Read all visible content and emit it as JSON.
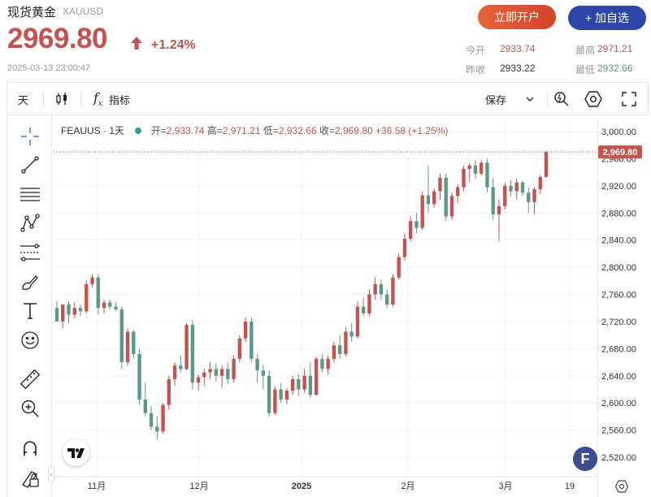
{
  "header": {
    "title": "现货黄金",
    "symbol": "XAUUSD",
    "price": "2969.80",
    "change_pct": "+1.24%",
    "timestamp": "2025-03-13 23:00:47",
    "open_account_label": "立即开户",
    "add_watchlist_label": "+ 加自选",
    "up_color": "#c8514d",
    "down_color": "#5a9a85"
  },
  "quotes": {
    "open_label": "今开",
    "open_value": "2933.74",
    "high_label": "最高",
    "high_value": "2971.21",
    "prev_label": "昨收",
    "prev_value": "2933.22",
    "low_label": "最低",
    "low_value": "2932.66"
  },
  "toolbar": {
    "interval": "天",
    "indicators_label": "指标",
    "save_label": "保存"
  },
  "legend": {
    "name": "FEAUUS · 1天",
    "open_label": "开=",
    "open": "2,933.74",
    "high_label": "高=",
    "high": "2,971.21",
    "low_label": "低=",
    "low": "2,932.66",
    "close_label": "收=",
    "close": "2,969.80",
    "change": "+36.58 (+1.25%)"
  },
  "chart_data": {
    "type": "candlestick",
    "y_ticks": [
      "3,000.00",
      "2,960.00",
      "2,920.00",
      "2,880.00",
      "2,840.00",
      "2,800.00",
      "2,760.00",
      "2,720.00",
      "2,680.00",
      "2,640.00",
      "2,600.00",
      "2,560.00",
      "2,520.00"
    ],
    "x_ticks": [
      "11月",
      "12月",
      "2025",
      "2月",
      "3月",
      "19"
    ],
    "ylim": [
      2490,
      3020
    ],
    "last_price_label": "2,969.80",
    "candles": [
      [
        2740,
        2750,
        2720,
        2720
      ],
      [
        2720,
        2745,
        2710,
        2745
      ],
      [
        2745,
        2750,
        2718,
        2730
      ],
      [
        2730,
        2748,
        2725,
        2740
      ],
      [
        2740,
        2745,
        2728,
        2735
      ],
      [
        2735,
        2780,
        2732,
        2775
      ],
      [
        2775,
        2790,
        2770,
        2785
      ],
      [
        2785,
        2790,
        2730,
        2740
      ],
      [
        2740,
        2752,
        2732,
        2748
      ],
      [
        2748,
        2752,
        2738,
        2742
      ],
      [
        2742,
        2748,
        2736,
        2738
      ],
      [
        2738,
        2742,
        2650,
        2660
      ],
      [
        2660,
        2710,
        2655,
        2705
      ],
      [
        2705,
        2708,
        2665,
        2672
      ],
      [
        2672,
        2680,
        2598,
        2605
      ],
      [
        2605,
        2630,
        2580,
        2585
      ],
      [
        2585,
        2595,
        2560,
        2565
      ],
      [
        2565,
        2580,
        2545,
        2558
      ],
      [
        2558,
        2600,
        2555,
        2597
      ],
      [
        2597,
        2640,
        2590,
        2635
      ],
      [
        2635,
        2660,
        2625,
        2655
      ],
      [
        2655,
        2670,
        2645,
        2650
      ],
      [
        2650,
        2718,
        2648,
        2715
      ],
      [
        2715,
        2722,
        2620,
        2630
      ],
      [
        2630,
        2642,
        2618,
        2638
      ],
      [
        2638,
        2650,
        2625,
        2645
      ],
      [
        2645,
        2660,
        2635,
        2650
      ],
      [
        2650,
        2658,
        2632,
        2640
      ],
      [
        2640,
        2655,
        2622,
        2650
      ],
      [
        2650,
        2660,
        2628,
        2635
      ],
      [
        2635,
        2670,
        2630,
        2665
      ],
      [
        2665,
        2700,
        2660,
        2695
      ],
      [
        2695,
        2726,
        2690,
        2720
      ],
      [
        2720,
        2726,
        2660,
        2665
      ],
      [
        2665,
        2672,
        2630,
        2648
      ],
      [
        2648,
        2656,
        2620,
        2640
      ],
      [
        2640,
        2648,
        2580,
        2585
      ],
      [
        2585,
        2625,
        2582,
        2620
      ],
      [
        2620,
        2630,
        2600,
        2605
      ],
      [
        2605,
        2622,
        2598,
        2618
      ],
      [
        2618,
        2640,
        2612,
        2635
      ],
      [
        2635,
        2642,
        2610,
        2620
      ],
      [
        2620,
        2650,
        2615,
        2640
      ],
      [
        2640,
        2660,
        2608,
        2612
      ],
      [
        2612,
        2668,
        2610,
        2665
      ],
      [
        2665,
        2672,
        2645,
        2650
      ],
      [
        2650,
        2670,
        2642,
        2665
      ],
      [
        2665,
        2690,
        2660,
        2685
      ],
      [
        2685,
        2700,
        2665,
        2672
      ],
      [
        2672,
        2712,
        2668,
        2705
      ],
      [
        2705,
        2718,
        2690,
        2698
      ],
      [
        2698,
        2750,
        2695,
        2742
      ],
      [
        2742,
        2755,
        2728,
        2732
      ],
      [
        2732,
        2768,
        2728,
        2760
      ],
      [
        2760,
        2785,
        2752,
        2775
      ],
      [
        2775,
        2782,
        2752,
        2760
      ],
      [
        2760,
        2768,
        2740,
        2745
      ],
      [
        2745,
        2790,
        2742,
        2785
      ],
      [
        2785,
        2820,
        2782,
        2815
      ],
      [
        2815,
        2850,
        2810,
        2842
      ],
      [
        2842,
        2875,
        2838,
        2868
      ],
      [
        2868,
        2880,
        2850,
        2858
      ],
      [
        2858,
        2912,
        2855,
        2906
      ],
      [
        2906,
        2950,
        2880,
        2893
      ],
      [
        2893,
        2916,
        2888,
        2912
      ],
      [
        2912,
        2938,
        2900,
        2932
      ],
      [
        2932,
        2938,
        2868,
        2875
      ],
      [
        2875,
        2910,
        2870,
        2905
      ],
      [
        2905,
        2922,
        2895,
        2918
      ],
      [
        2918,
        2950,
        2912,
        2945
      ],
      [
        2945,
        2954,
        2925,
        2950
      ],
      [
        2950,
        2958,
        2930,
        2938
      ],
      [
        2938,
        2958,
        2935,
        2954
      ],
      [
        2954,
        2960,
        2910,
        2918
      ],
      [
        2918,
        2932,
        2870,
        2878
      ],
      [
        2878,
        2900,
        2838,
        2890
      ],
      [
        2890,
        2925,
        2885,
        2920
      ],
      [
        2920,
        2928,
        2905,
        2912
      ],
      [
        2912,
        2930,
        2900,
        2925
      ],
      [
        2925,
        2928,
        2905,
        2910
      ],
      [
        2910,
        2918,
        2880,
        2896
      ],
      [
        2896,
        2918,
        2878,
        2915
      ],
      [
        2915,
        2936,
        2908,
        2933
      ],
      [
        2933,
        2971,
        2932,
        2970
      ]
    ]
  }
}
